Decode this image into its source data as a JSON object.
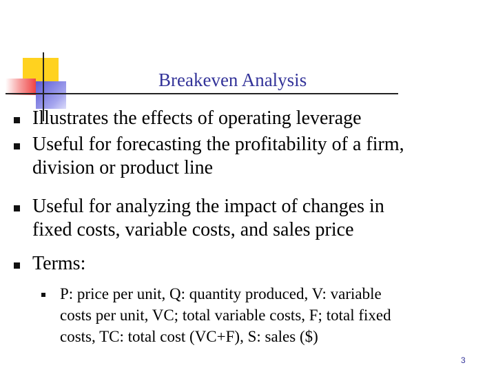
{
  "slide": {
    "title": "Breakeven Analysis",
    "bullets": [
      {
        "text": "Illustrates the effects of operating leverage"
      },
      {
        "text": "Useful for forecasting the profitability of a firm,\ndivision or product line"
      },
      {
        "text": "Useful for analyzing the impact of changes in\nfixed costs, variable costs, and sales price"
      },
      {
        "text": "Terms:"
      }
    ],
    "sub_bullets": [
      {
        "text": "P: price per unit, Q: quantity produced, V: variable\ncosts per unit, VC; total variable costs, F; total fixed\ncosts, TC: total cost (VC+F), S: sales ($)"
      }
    ],
    "page_number": "3"
  },
  "colors": {
    "title": "#333399",
    "accent_yellow": "#ffd21f",
    "accent_red": "#ee4444",
    "accent_blue": "#5b5ad6"
  }
}
